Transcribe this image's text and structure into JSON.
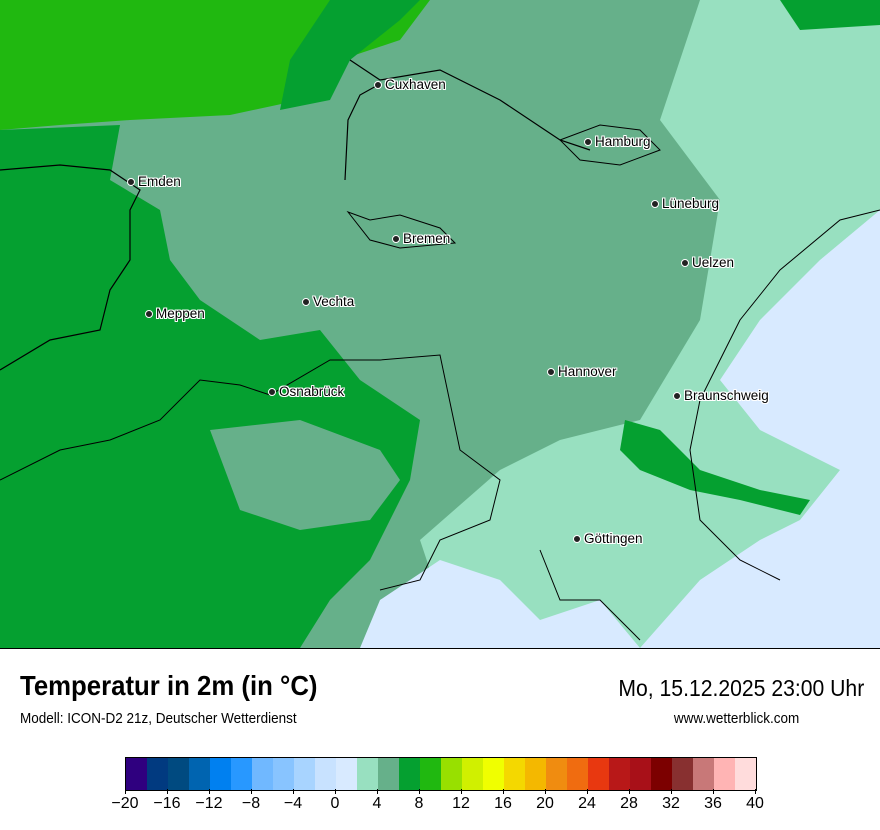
{
  "header": {
    "title": "Temperatur in 2m (in °C)",
    "subtitle": "Modell: ICON-D2 21z, Deutscher Wetterdienst",
    "datetime": "Mo, 15.12.2025 23:00 Uhr",
    "website": "www.wetterblick.com"
  },
  "map": {
    "cities": [
      {
        "name": "Cuxhaven"
      },
      {
        "name": "Hamburg"
      },
      {
        "name": "Emden"
      },
      {
        "name": "Lüneburg"
      },
      {
        "name": "Bremen"
      },
      {
        "name": "Uelzen"
      },
      {
        "name": "Vechta"
      },
      {
        "name": "Meppen"
      },
      {
        "name": "Hannover"
      },
      {
        "name": "Osnabrück"
      },
      {
        "name": "Braunschweig"
      },
      {
        "name": "Göttingen"
      }
    ]
  },
  "colorbar": {
    "unit": "°C",
    "min": -20,
    "max": 40,
    "step": 2,
    "tick_labels": [
      "−20",
      "−16",
      "−12",
      "−8",
      "−4",
      "0",
      "4",
      "8",
      "12",
      "16",
      "20",
      "24",
      "28",
      "32",
      "36",
      "40"
    ],
    "colors": [
      "#2f007f",
      "#013a80",
      "#004a80",
      "#0064b0",
      "#0080f0",
      "#2898ff",
      "#70b8ff",
      "#88c4ff",
      "#a8d4ff",
      "#c8e2ff",
      "#d8eaff",
      "#98e0c0",
      "#66b08a",
      "#05a030",
      "#20b810",
      "#98e000",
      "#d0f000",
      "#f0ff00",
      "#f4d800",
      "#f4b800",
      "#f08c10",
      "#f06c10",
      "#e83810",
      "#b81818",
      "#a81018",
      "#7c0000",
      "#883030",
      "#c87878",
      "#ffb4b4",
      "#ffdcdc"
    ]
  }
}
